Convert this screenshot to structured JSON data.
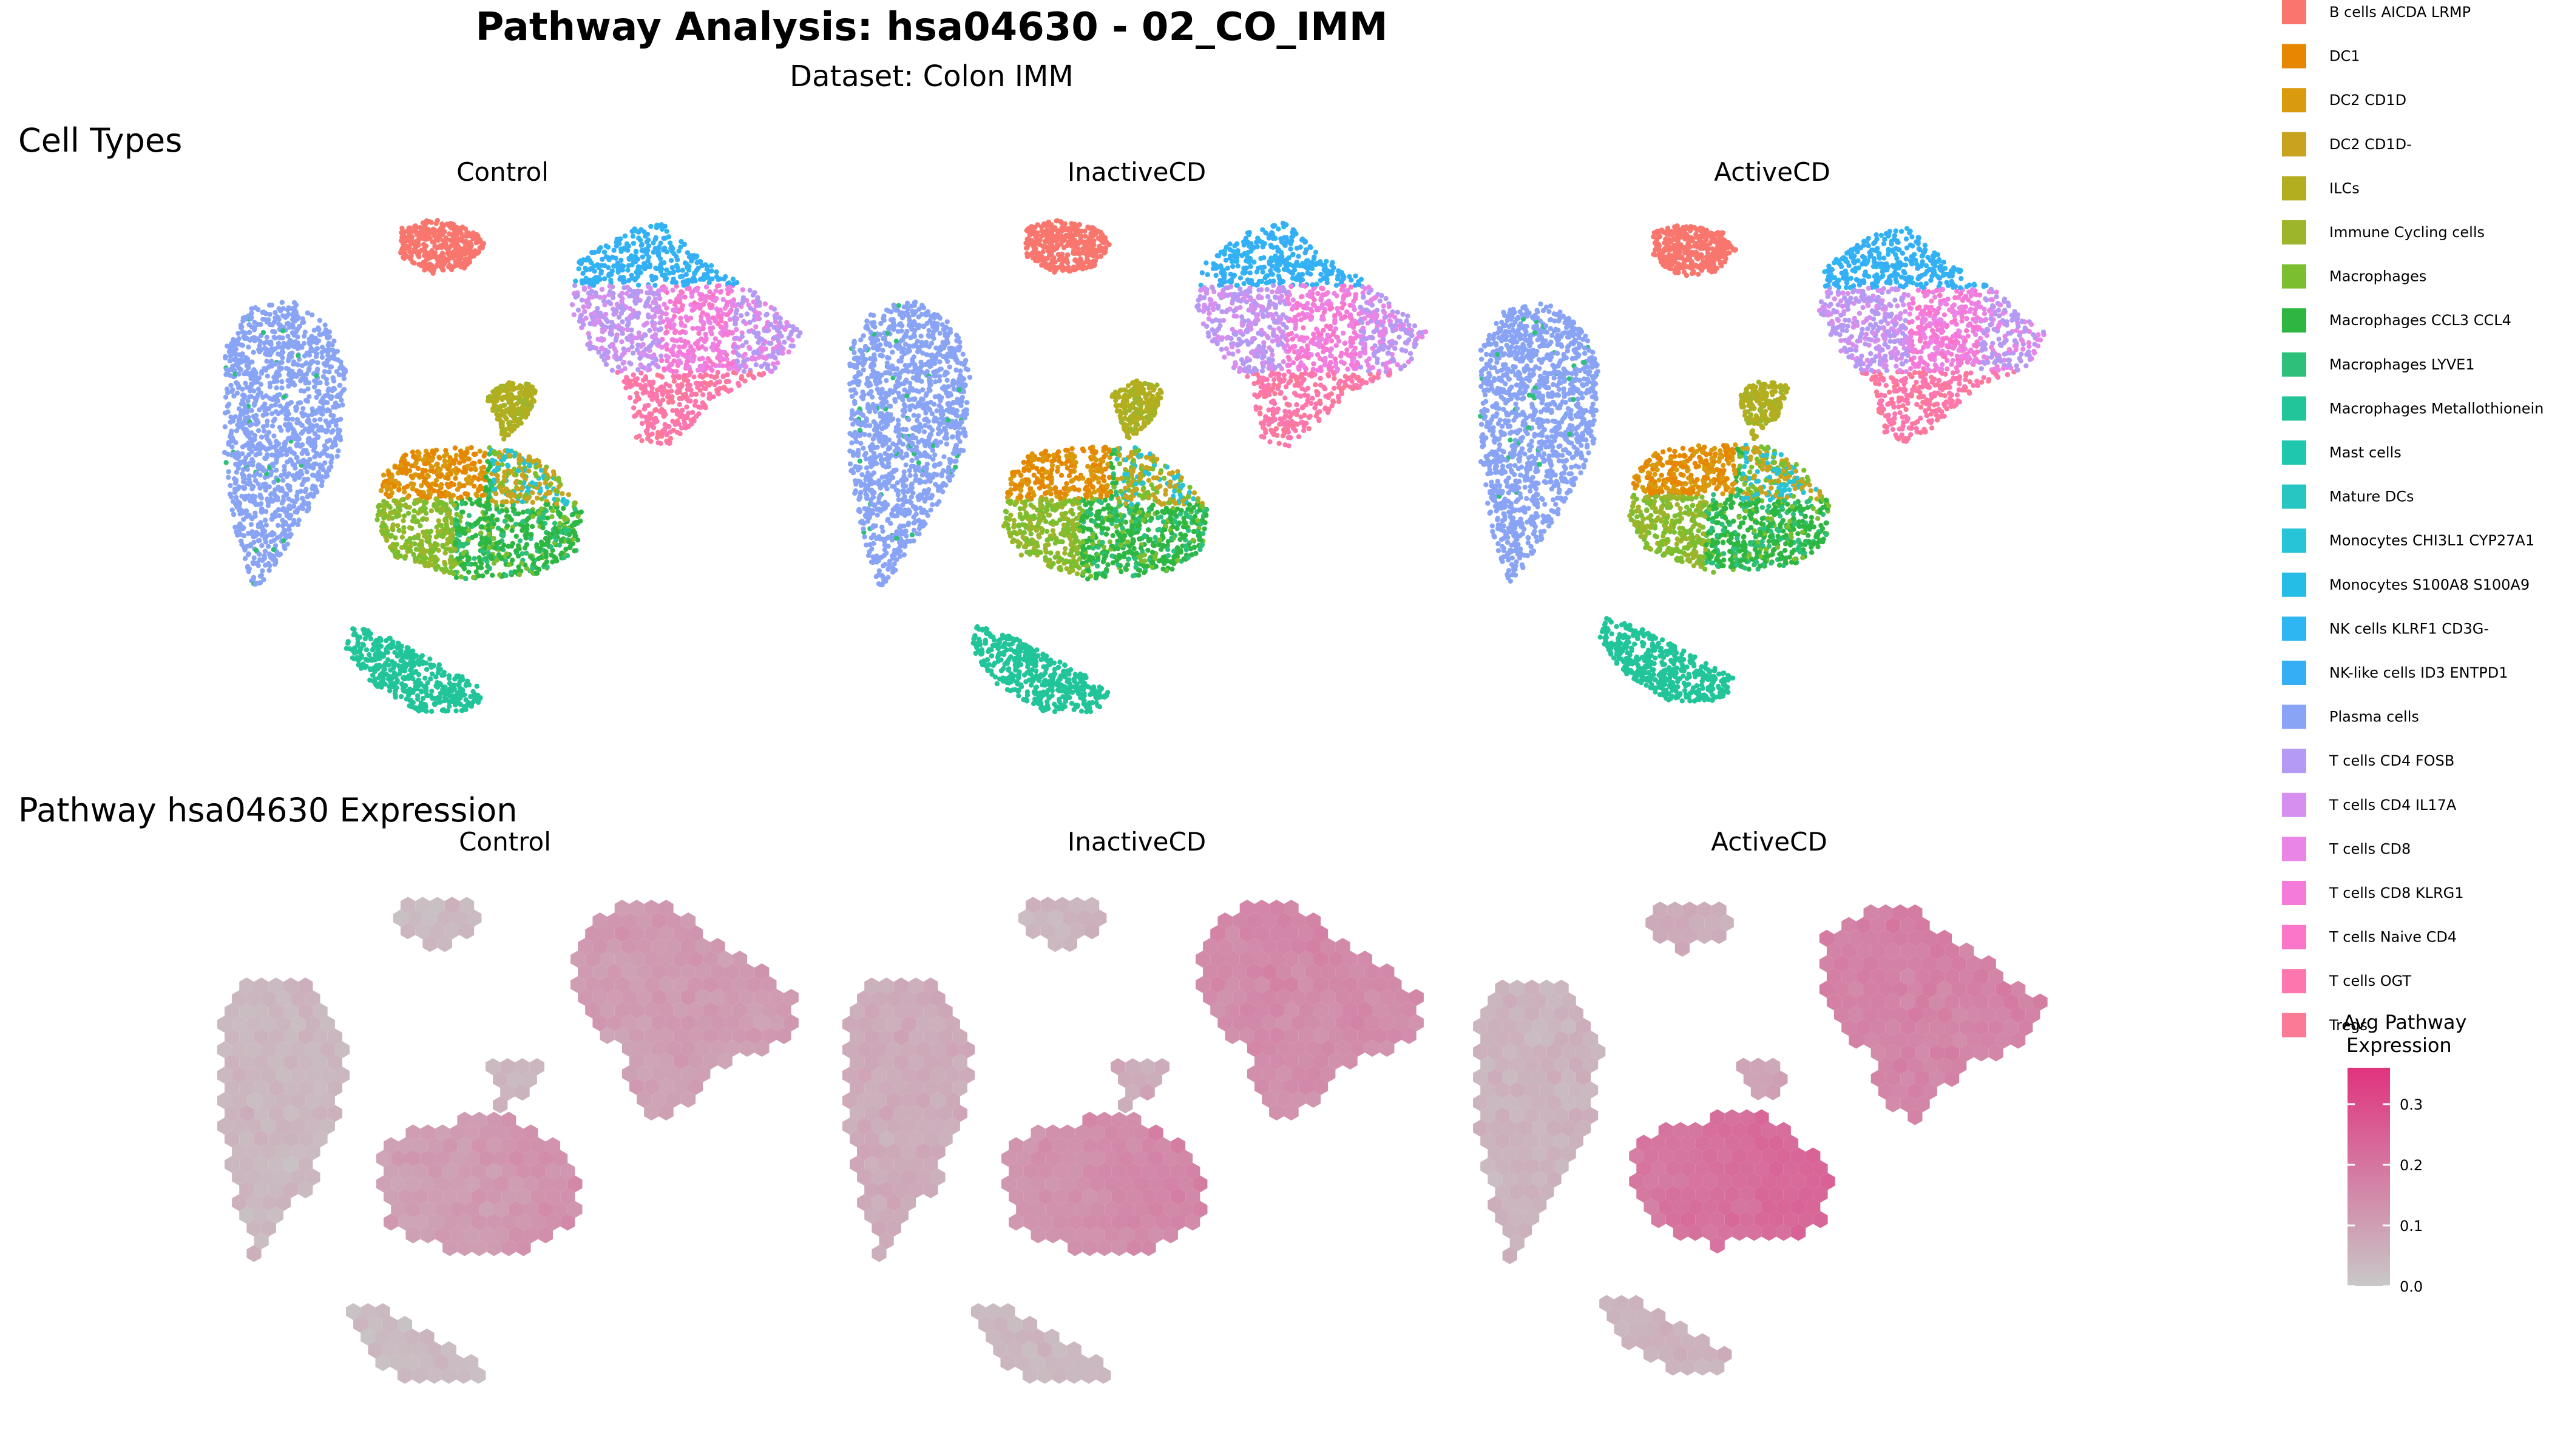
{
  "title": "Pathway Analysis: hsa04630 - 02_CO_IMM",
  "subtitle": "Dataset: Colon IMM",
  "sections": {
    "cell_types": "Cell Types",
    "pathway": "Pathway hsa04630 Expression"
  },
  "panels": [
    "Control",
    "InactiveCD",
    "ActiveCD"
  ],
  "legend": {
    "items": [
      {
        "label": "B cells AICDA LRMP",
        "color": "#F8766D"
      },
      {
        "label": "DC1",
        "color": "#E58700"
      },
      {
        "label": "DC2 CD1D",
        "color": "#D99A0E"
      },
      {
        "label": "DC2 CD1D-",
        "color": "#C9A31F"
      },
      {
        "label": "ILCs",
        "color": "#B3AE1F"
      },
      {
        "label": "Immune Cycling cells",
        "color": "#9CB52A"
      },
      {
        "label": "Macrophages",
        "color": "#7BBE2F"
      },
      {
        "label": "Macrophages CCL3 CCL4",
        "color": "#2DB742"
      },
      {
        "label": "Macrophages LYVE1",
        "color": "#2CC07A"
      },
      {
        "label": "Macrophages Metallothionein",
        "color": "#22C49A"
      },
      {
        "label": "Mast cells",
        "color": "#1FC7AE"
      },
      {
        "label": "Mature DCs",
        "color": "#27C6C2"
      },
      {
        "label": "Monocytes CHI3L1 CYP27A1",
        "color": "#27C3D6"
      },
      {
        "label": "Monocytes S100A8 S100A9",
        "color": "#25BDE6"
      },
      {
        "label": "NK cells KLRF1 CD3G-",
        "color": "#2EB6F2"
      },
      {
        "label": "NK-like cells ID3 ENTPD1",
        "color": "#35AEF6"
      },
      {
        "label": "Plasma cells",
        "color": "#8AA4F5"
      },
      {
        "label": "T cells CD4 FOSB",
        "color": "#B59AF4"
      },
      {
        "label": "T cells CD4 IL17A",
        "color": "#D68FEF"
      },
      {
        "label": "T cells CD8",
        "color": "#EA85E8"
      },
      {
        "label": "T cells CD8 KLRG1",
        "color": "#F57BDB"
      },
      {
        "label": "T cells Naive CD4",
        "color": "#FA76C8"
      },
      {
        "label": "T cells OGT",
        "color": "#FD76AE"
      },
      {
        "label": "Tregs",
        "color": "#FB7A95"
      }
    ]
  },
  "colorbar": {
    "title_line1": "Avg Pathway",
    "title_line2": "Expression",
    "ticks": [
      "0.3",
      "0.2",
      "0.1",
      "0.0"
    ],
    "tick_values": [
      0.3,
      0.2,
      0.1,
      0.0
    ],
    "range": [
      0,
      0.36
    ],
    "low_color": "#C8C8C8",
    "high_color": "#E0337E"
  },
  "chart_data": [
    {
      "type": "scatter",
      "title": "Cell Types",
      "facets": [
        "Control",
        "InactiveCD",
        "ActiveCD"
      ],
      "color_by": "cell type",
      "legend_position": "right",
      "grid": false
    },
    {
      "type": "heatmap",
      "title": "Pathway hsa04630 Expression",
      "facets": [
        "Control",
        "InactiveCD",
        "ActiveCD"
      ],
      "value_label": "Avg Pathway Expression",
      "value_range": [
        0,
        0.36
      ],
      "cluster_mean_expression": {
        "Control": {
          "B cells": 0.04,
          "Plasma cells": 0.04,
          "Myeloid": 0.09,
          "ILCs": 0.05,
          "T cells": 0.1,
          "Mast cells": 0.03
        },
        "InactiveCD": {
          "B cells": 0.05,
          "Plasma cells": 0.07,
          "Myeloid": 0.12,
          "ILCs": 0.07,
          "T cells": 0.14,
          "Mast cells": 0.04
        },
        "ActiveCD": {
          "B cells": 0.07,
          "Plasma cells": 0.05,
          "Myeloid": 0.19,
          "ILCs": 0.09,
          "T cells": 0.16,
          "Mast cells": 0.05
        }
      },
      "legend_position": "right",
      "grid": false
    }
  ]
}
